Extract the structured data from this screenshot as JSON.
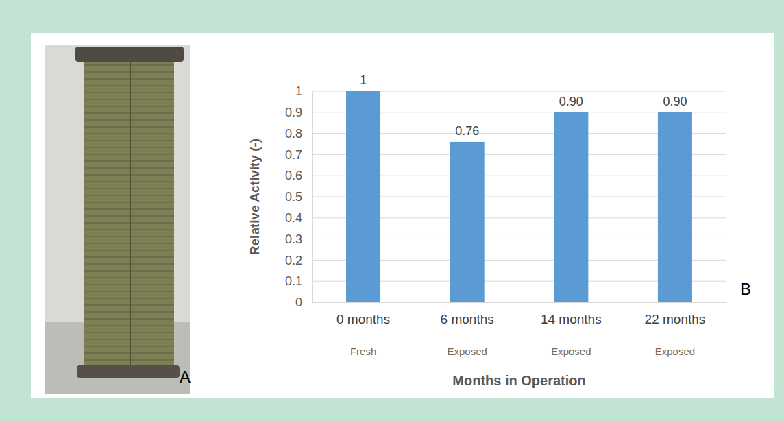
{
  "chart_data": {
    "type": "bar",
    "categories": [
      "0 months",
      "6 months",
      "14 months",
      "22 months"
    ],
    "category_sublabels": [
      "Fresh",
      "Exposed",
      "Exposed",
      "Exposed"
    ],
    "values": [
      1,
      0.76,
      0.9,
      0.9
    ],
    "value_labels": [
      "1",
      "0.76",
      "0.90",
      "0.90"
    ],
    "data_labels": true,
    "color": "#5b9bd5",
    "y_label": "Relative Activity (-)",
    "x_label": "Months in Operation",
    "ylim": [
      0,
      1
    ],
    "yticks": [
      0,
      0.1,
      0.2,
      0.3,
      0.4,
      0.5,
      0.6,
      0.7,
      0.8,
      0.9,
      1
    ],
    "grid": true
  },
  "panel_labels": [
    "A",
    "B"
  ]
}
